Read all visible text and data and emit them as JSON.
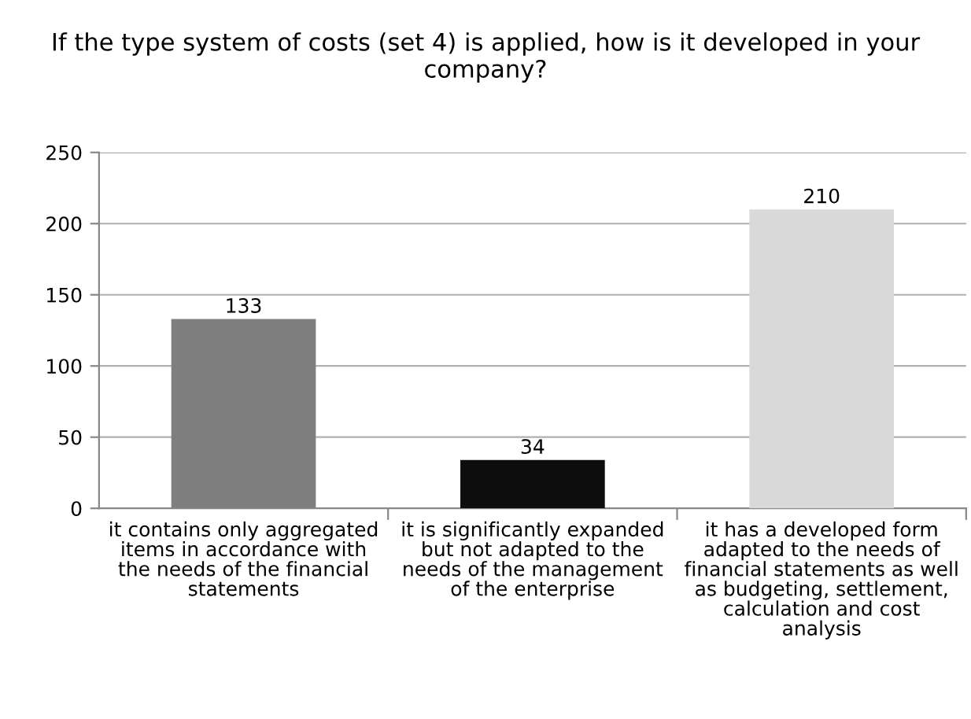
{
  "chart_data": {
    "type": "bar",
    "title": "If the type system of costs (set 4) is applied, how is it developed in your company?",
    "categories": [
      "it contains only aggregated items in accordance with the needs of the financial statements",
      "it is significantly expanded but not adapted to the needs of the management of the enterprise",
      "it has a developed form adapted to the needs of financial statements as well as budgeting, settlement, calculation and cost analysis"
    ],
    "values": [
      133,
      34,
      210
    ],
    "colors": [
      "#7f7f7f",
      "#0d0d0d",
      "#d9d9d9"
    ],
    "ylim": [
      0,
      250
    ],
    "yticks": [
      0,
      50,
      100,
      150,
      200,
      250
    ],
    "grid": "y",
    "data_labels": true
  }
}
